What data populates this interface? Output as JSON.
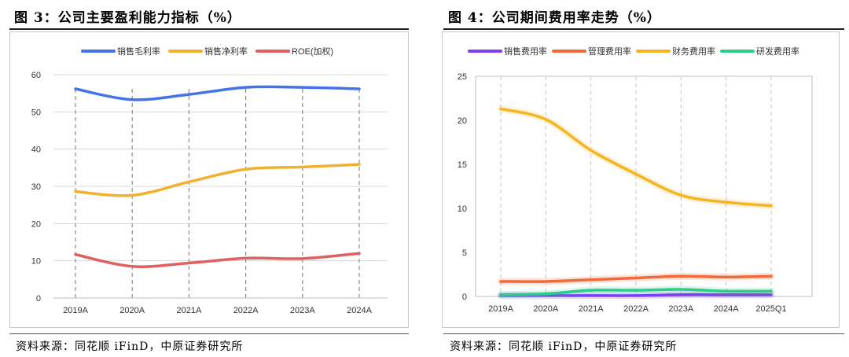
{
  "figures": [
    {
      "title": "图 3：公司主要盈利能力指标（%）",
      "source": "资料来源：同花顺 iFinD，中原证券研究所"
    },
    {
      "title": "图 4：公司期间费用率走势（%）",
      "source": "资料来源：同花顺 iFinD，中原证券研究所"
    }
  ],
  "chart_data": [
    {
      "type": "line",
      "title": "",
      "xlabel": "",
      "ylabel": "",
      "categories": [
        "2019A",
        "2020A",
        "2021A",
        "2022A",
        "2023A",
        "2024A"
      ],
      "yticks": [
        "0",
        "10",
        "20",
        "30",
        "40",
        "50",
        "60"
      ],
      "ylim": [
        0,
        60
      ],
      "grid": "horizontal solid, vertical dashed",
      "legend_position": "top",
      "series": [
        {
          "name": "销售毛利率",
          "color": "#4472E8",
          "values": [
            56.2,
            53.3,
            54.7,
            56.6,
            56.6,
            56.2
          ]
        },
        {
          "name": "销售净利率",
          "color": "#F0B030",
          "values": [
            28.6,
            27.6,
            31.2,
            34.6,
            35.2,
            35.9
          ]
        },
        {
          "name": "ROE(加权)",
          "color": "#E06060",
          "values": [
            11.7,
            8.5,
            9.4,
            10.7,
            10.6,
            12.0
          ]
        }
      ]
    },
    {
      "type": "line",
      "title": "",
      "xlabel": "",
      "ylabel": "",
      "categories": [
        "2019A",
        "2020A",
        "2021A",
        "2022A",
        "2023A",
        "2024A",
        "2025Q1"
      ],
      "yticks": [
        "0",
        "5",
        "10",
        "15",
        "20",
        "25"
      ],
      "ylim": [
        0,
        25
      ],
      "grid": "vertical dashed",
      "legend_position": "top",
      "series": [
        {
          "name": "销售费用率",
          "color": "#7B3FF2",
          "values": [
            0.1,
            0.1,
            0.1,
            0.1,
            0.2,
            0.2,
            0.2
          ]
        },
        {
          "name": "管理费用率",
          "color": "#F26A3A",
          "values": [
            1.7,
            1.7,
            1.9,
            2.1,
            2.3,
            2.2,
            2.3
          ]
        },
        {
          "name": "财务费用率",
          "color": "#F5B523",
          "values": [
            21.3,
            20.1,
            16.6,
            13.9,
            11.5,
            10.7,
            10.3
          ]
        },
        {
          "name": "研发费用率",
          "color": "#2ECC8A",
          "values": [
            0.2,
            0.3,
            0.7,
            0.7,
            0.8,
            0.6,
            0.6
          ]
        }
      ]
    }
  ]
}
